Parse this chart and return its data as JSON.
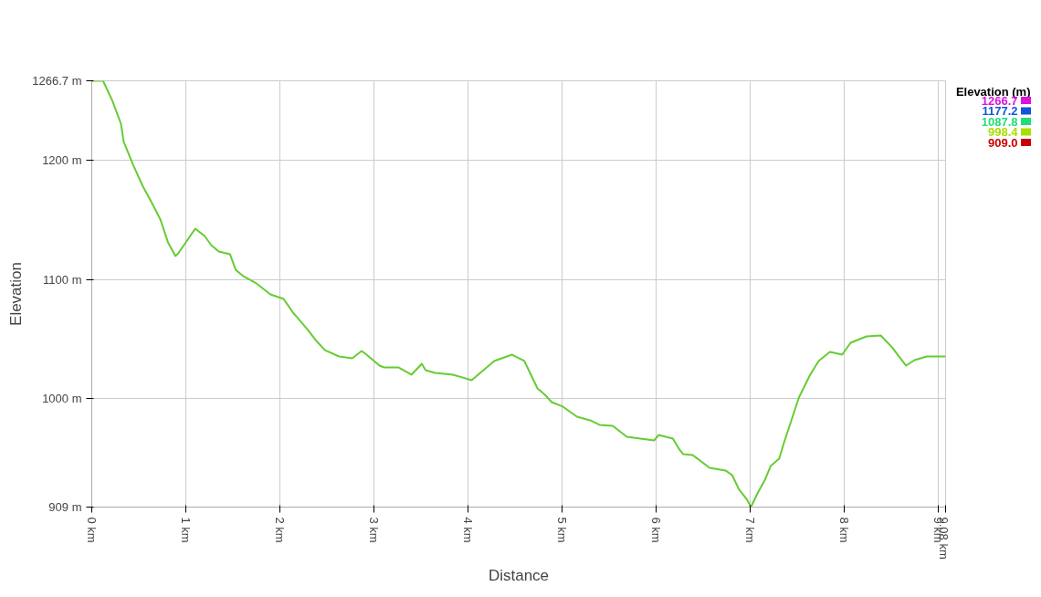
{
  "chart_data": {
    "type": "line",
    "xlabel": "Distance",
    "ylabel": "Elevation",
    "clabel": "Elevation (m)",
    "x": [
      0,
      0.12,
      0.22,
      0.31,
      0.34,
      0.44,
      0.54,
      0.63,
      0.73,
      0.81,
      0.89,
      0.92,
      1.02,
      1.1,
      1.2,
      1.27,
      1.35,
      1.47,
      1.53,
      1.61,
      1.75,
      1.9,
      2.04,
      2.14,
      2.29,
      2.38,
      2.48,
      2.63,
      2.77,
      2.87,
      2.91,
      3.06,
      3.11,
      3.26,
      3.4,
      3.51,
      3.55,
      3.65,
      3.84,
      4.04,
      4.28,
      4.47,
      4.6,
      4.67,
      4.74,
      4.82,
      4.89,
      5.01,
      5.16,
      5.3,
      5.4,
      5.54,
      5.69,
      5.98,
      6.03,
      6.18,
      6.25,
      6.29,
      6.39,
      6.57,
      6.74,
      6.81,
      6.88,
      6.97,
      7.01,
      7.08,
      7.16,
      7.22,
      7.31,
      7.36,
      7.44,
      7.52,
      7.64,
      7.73,
      7.85,
      7.98,
      8.07,
      8.24,
      8.39,
      8.51,
      8.66,
      8.75,
      8.88,
      9.0,
      9.08
    ],
    "values": [
      1266.7,
      1266.7,
      1249.8,
      1230.7,
      1215.4,
      1196.2,
      1178.6,
      1165.6,
      1150.3,
      1131.2,
      1119.7,
      1121.9,
      1133.4,
      1142.6,
      1136.5,
      1128.8,
      1123.5,
      1121.2,
      1108.2,
      1102.8,
      1096.7,
      1087.5,
      1083.6,
      1072.2,
      1058.4,
      1049.2,
      1040.7,
      1035.4,
      1033.9,
      1040.0,
      1037.7,
      1027.7,
      1026.2,
      1026.2,
      1020.1,
      1029.3,
      1023.9,
      1021.6,
      1020.1,
      1015.5,
      1031.6,
      1036.9,
      1031.6,
      1020.1,
      1008.6,
      1003.2,
      997.1,
      993.3,
      984.8,
      981.8,
      978.0,
      977.2,
      968.0,
      964.9,
      969.5,
      966.5,
      957.3,
      953.4,
      952.7,
      941.9,
      939.7,
      935.8,
      924.3,
      915.1,
      909.0,
      920.5,
      932.0,
      943.5,
      949.6,
      962.6,
      981.8,
      1000.9,
      1020.1,
      1031.6,
      1039.2,
      1036.9,
      1046.9,
      1052.2,
      1053.0,
      1043.1,
      1027.7,
      1032.3,
      1035.4,
      1035.4,
      1035.4
    ],
    "color": "#66cc33",
    "cticks": [
      {
        "value": 1266.7,
        "label": "1266.7"
      },
      {
        "value": 1177.2,
        "label": "1177.2"
      },
      {
        "value": 1087.8,
        "label": "1087.8"
      },
      {
        "value": 998.4,
        "label": "998.4"
      },
      {
        "value": 909.0,
        "label": "909.0"
      }
    ],
    "xlim": [
      0,
      9.08
    ],
    "xticks": [
      {
        "value": 0,
        "label": "0 km"
      },
      {
        "value": 1,
        "label": "1 km"
      },
      {
        "value": 2,
        "label": "2 km"
      },
      {
        "value": 3,
        "label": "3 km"
      },
      {
        "value": 4,
        "label": "4 km"
      },
      {
        "value": 5,
        "label": "5 km"
      },
      {
        "value": 6,
        "label": "6 km"
      },
      {
        "value": 7,
        "label": "7 km"
      },
      {
        "value": 8,
        "label": "8 km"
      },
      {
        "value": 9,
        "label": "9 km"
      },
      {
        "value": 9.08,
        "label": "9.08 km"
      }
    ],
    "ylim": [
      909,
      1266.7
    ],
    "yticks": [
      {
        "value": 909,
        "label": "909 m"
      },
      {
        "value": 1000,
        "label": "1000 m"
      },
      {
        "value": 1100,
        "label": "1100 m"
      },
      {
        "value": 1200,
        "label": "1200 m"
      },
      {
        "value": 1266.7,
        "label": "1266.7 m"
      }
    ],
    "grid": true
  }
}
